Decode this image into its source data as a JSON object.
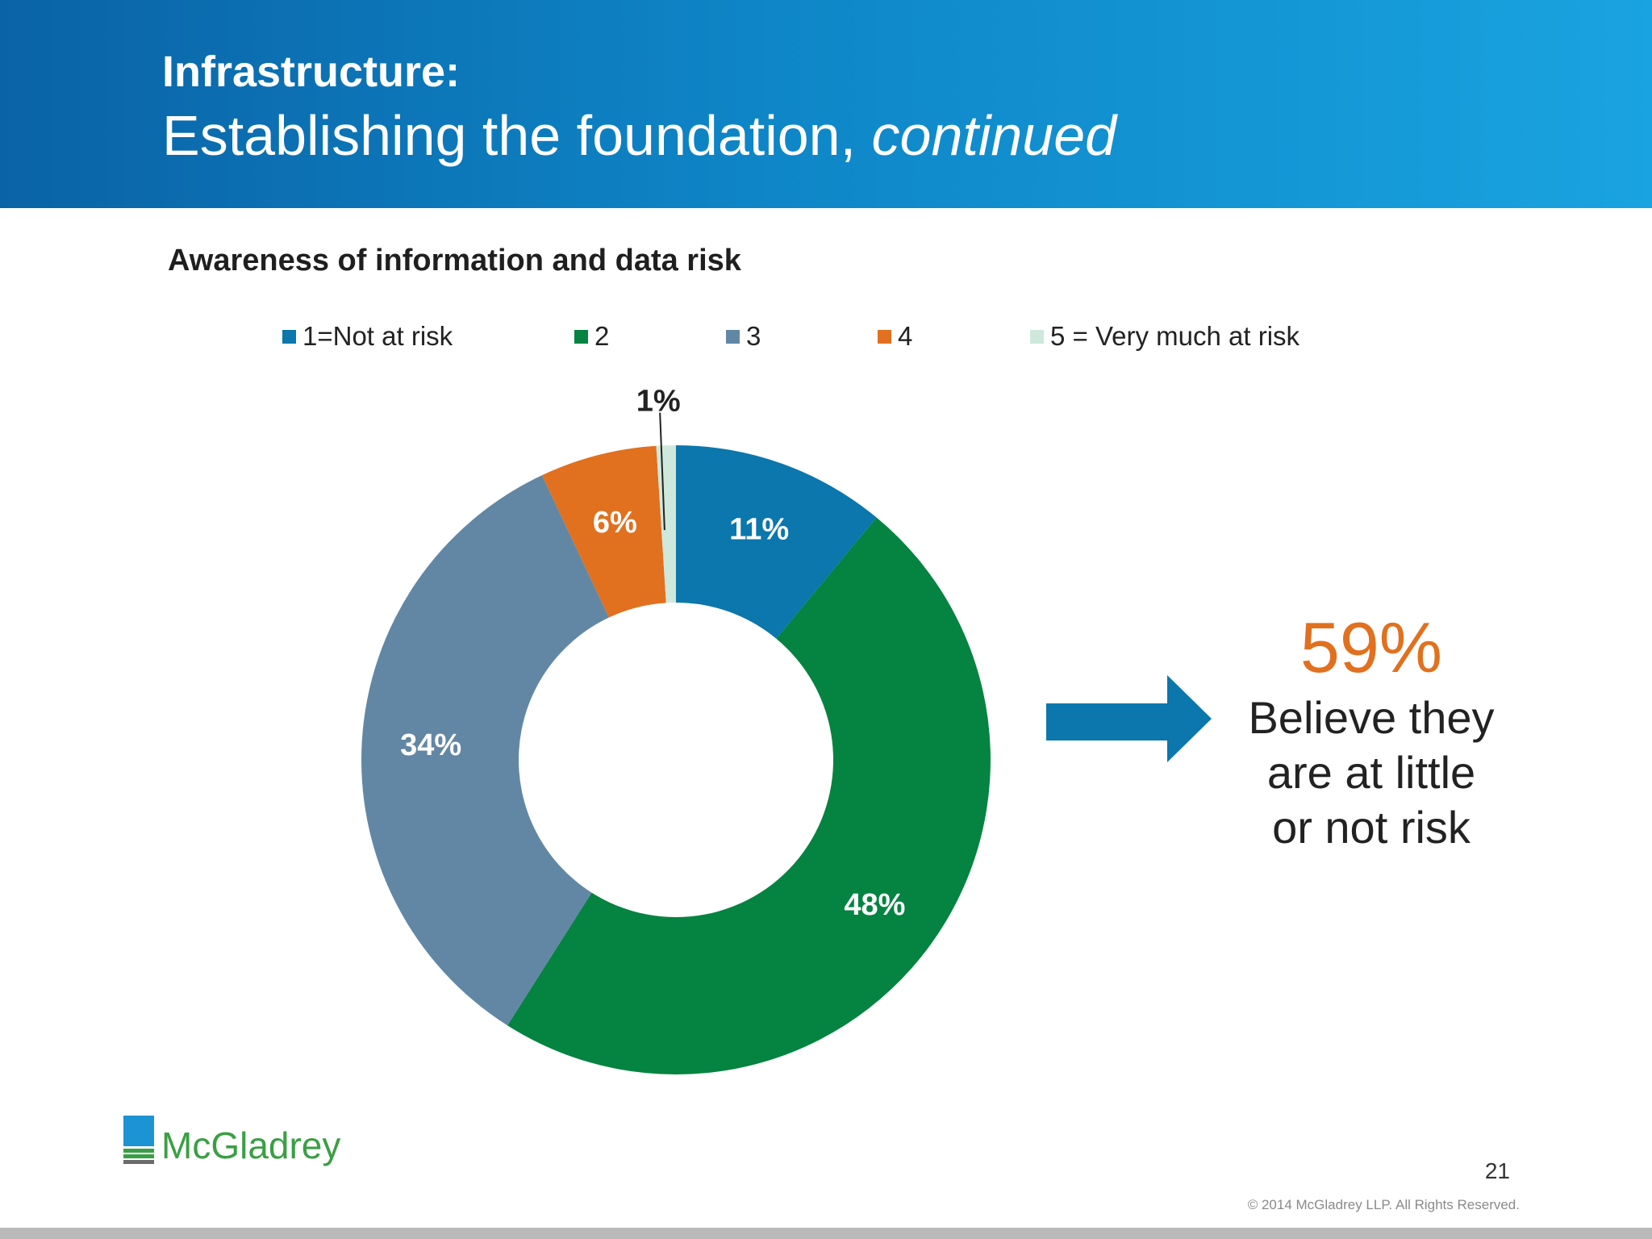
{
  "slide": {
    "title_line1": "Infrastructure:",
    "title_line2_main": "Establishing the foundation, ",
    "title_line2_italic": "continued",
    "callout_percent": "59%",
    "callout_lines": [
      "Believe they",
      "are at little",
      "or not risk"
    ],
    "logo_text": "McGladrey",
    "page_number": "21",
    "copyright": "© 2014 McGladrey LLP. All Rights Reserved."
  },
  "chart_data": {
    "type": "pie",
    "title": "Awareness of information and data risk",
    "legend_position": "top",
    "categories": [
      "1=Not at risk",
      "2",
      "3",
      "4",
      "5 = Very much at risk"
    ],
    "values": [
      11,
      48,
      34,
      6,
      1
    ],
    "labels": [
      "11%",
      "48%",
      "34%",
      "6%",
      "1%"
    ],
    "colors": [
      "#0b77ac",
      "#058341",
      "#6287a4",
      "#e1701f",
      "#cfe8dc"
    ]
  }
}
